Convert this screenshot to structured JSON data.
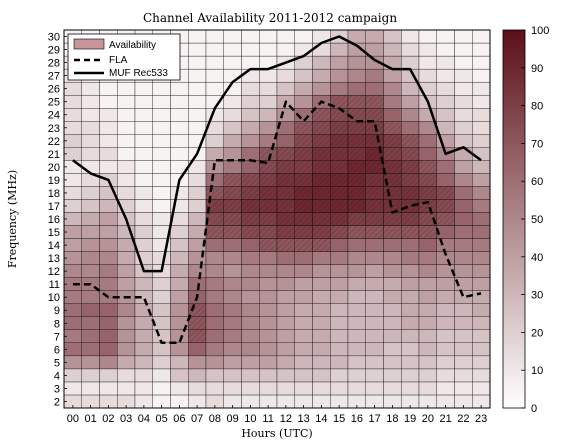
{
  "chart_data": {
    "type": "heatmap",
    "title": "Channel Availability 2011-2012 campaign",
    "xlabel": "Hours (UTC)",
    "ylabel": "Frequency (MHz)",
    "x_tick_labels": [
      "00",
      "01",
      "02",
      "03",
      "04",
      "05",
      "06",
      "07",
      "08",
      "09",
      "10",
      "11",
      "12",
      "13",
      "14",
      "15",
      "16",
      "17",
      "18",
      "19",
      "20",
      "21",
      "22",
      "23"
    ],
    "y_tick_labels": [
      "2",
      "3",
      "4",
      "5",
      "6",
      "7",
      "8",
      "9",
      "10",
      "11",
      "12",
      "13",
      "14",
      "15",
      "16",
      "17",
      "18",
      "19",
      "20",
      "21",
      "22",
      "23",
      "24",
      "25",
      "26",
      "27",
      "28",
      "29",
      "30"
    ],
    "x_range": [
      0,
      23
    ],
    "y_range": [
      2,
      30
    ],
    "colorbar": {
      "min": 0,
      "max": 100,
      "ticks": [
        0,
        10,
        20,
        30,
        40,
        50,
        60,
        70,
        80,
        90,
        100
      ],
      "low_color": "#ffffff",
      "high_color": "#5c0f18"
    },
    "legend": {
      "position": "top-left",
      "entries": [
        "Availability",
        "FLA",
        "MUF Rec533"
      ]
    },
    "hatch_threshold": 70,
    "series": [
      {
        "name": "FLA",
        "style": "dashed",
        "hours": [
          0,
          1,
          2,
          3,
          4,
          5,
          6,
          7,
          8,
          9,
          10,
          11,
          12,
          13,
          14,
          15,
          16,
          17,
          18,
          19,
          20,
          21,
          22,
          23
        ],
        "mhz": [
          11,
          11,
          10,
          10,
          10,
          6.5,
          6.5,
          10,
          20.5,
          20.5,
          20.5,
          20.3,
          25,
          23.5,
          25,
          24.5,
          23.5,
          23.5,
          16.5,
          17,
          17.3,
          13.3,
          10,
          10.3
        ]
      },
      {
        "name": "MUF Rec533",
        "style": "solid",
        "hours": [
          0,
          1,
          2,
          3,
          4,
          5,
          6,
          7,
          8,
          9,
          10,
          11,
          12,
          13,
          14,
          15,
          16,
          17,
          18,
          19,
          20,
          21,
          22,
          23
        ],
        "mhz": [
          20.5,
          19.5,
          19,
          16,
          12,
          12,
          19,
          21,
          24.5,
          26.5,
          27.5,
          27.5,
          28,
          28.5,
          29.5,
          30,
          29.3,
          28.2,
          27.5,
          27.5,
          25,
          21,
          21.5,
          20.5
        ]
      }
    ],
    "availability": [
      [
        15,
        10,
        20,
        45,
        60,
        55,
        60,
        60,
        55,
        55,
        50,
        45,
        40,
        40,
        30,
        20,
        15,
        10,
        10,
        20,
        20,
        15,
        15,
        15,
        15,
        10,
        10,
        5,
        5
      ],
      [
        15,
        10,
        20,
        45,
        60,
        60,
        60,
        65,
        55,
        55,
        50,
        50,
        45,
        40,
        35,
        25,
        20,
        15,
        10,
        15,
        15,
        15,
        10,
        10,
        10,
        5,
        5,
        5,
        5
      ],
      [
        15,
        10,
        20,
        50,
        65,
        65,
        65,
        65,
        55,
        55,
        55,
        50,
        45,
        40,
        40,
        30,
        25,
        20,
        10,
        15,
        10,
        10,
        10,
        5,
        5,
        5,
        5,
        5,
        5
      ],
      [
        15,
        10,
        15,
        35,
        45,
        45,
        45,
        50,
        45,
        40,
        40,
        35,
        35,
        30,
        25,
        20,
        15,
        10,
        10,
        5,
        5,
        5,
        5,
        5,
        5,
        5,
        5,
        5,
        5
      ],
      [
        10,
        10,
        15,
        30,
        35,
        35,
        35,
        35,
        30,
        30,
        25,
        20,
        20,
        20,
        15,
        10,
        10,
        5,
        5,
        5,
        5,
        5,
        5,
        5,
        5,
        5,
        5,
        5,
        5
      ],
      [
        5,
        5,
        10,
        20,
        25,
        25,
        25,
        25,
        20,
        20,
        15,
        15,
        10,
        10,
        10,
        5,
        5,
        5,
        5,
        5,
        5,
        5,
        5,
        5,
        5,
        5,
        5,
        5,
        5
      ],
      [
        5,
        10,
        25,
        30,
        45,
        45,
        45,
        45,
        40,
        35,
        35,
        30,
        25,
        20,
        15,
        10,
        10,
        5,
        5,
        5,
        5,
        5,
        5,
        5,
        5,
        5,
        5,
        5,
        5
      ],
      [
        10,
        15,
        30,
        45,
        65,
        70,
        70,
        70,
        65,
        60,
        50,
        45,
        40,
        35,
        30,
        20,
        20,
        15,
        10,
        5,
        5,
        5,
        5,
        5,
        5,
        5,
        5,
        5,
        5
      ],
      [
        15,
        15,
        25,
        45,
        55,
        60,
        60,
        60,
        55,
        55,
        50,
        50,
        60,
        70,
        75,
        80,
        70,
        60,
        45,
        35,
        20,
        15,
        10,
        5,
        5,
        5,
        5,
        5,
        5
      ],
      [
        10,
        15,
        25,
        40,
        50,
        55,
        55,
        55,
        50,
        50,
        45,
        50,
        60,
        70,
        75,
        80,
        75,
        70,
        55,
        45,
        35,
        25,
        15,
        10,
        5,
        5,
        5,
        5,
        5
      ],
      [
        10,
        15,
        25,
        40,
        50,
        50,
        50,
        50,
        45,
        50,
        50,
        55,
        65,
        75,
        80,
        85,
        80,
        75,
        65,
        60,
        45,
        35,
        25,
        20,
        15,
        10,
        5,
        5,
        5
      ],
      [
        10,
        15,
        25,
        40,
        45,
        45,
        45,
        45,
        45,
        45,
        50,
        55,
        70,
        75,
        80,
        85,
        85,
        80,
        75,
        70,
        55,
        45,
        30,
        20,
        15,
        10,
        5,
        5,
        5
      ],
      [
        10,
        15,
        25,
        35,
        40,
        40,
        40,
        40,
        40,
        45,
        50,
        60,
        70,
        80,
        85,
        85,
        85,
        85,
        80,
        75,
        65,
        60,
        45,
        35,
        25,
        15,
        10,
        5,
        5
      ],
      [
        10,
        15,
        25,
        30,
        35,
        35,
        35,
        35,
        40,
        40,
        50,
        60,
        70,
        80,
        85,
        90,
        90,
        85,
        80,
        80,
        75,
        70,
        60,
        45,
        35,
        25,
        20,
        10,
        5
      ],
      [
        10,
        15,
        25,
        30,
        35,
        35,
        35,
        35,
        35,
        40,
        45,
        55,
        70,
        80,
        85,
        90,
        90,
        90,
        85,
        85,
        80,
        75,
        70,
        60,
        45,
        35,
        30,
        15,
        10
      ],
      [
        10,
        15,
        20,
        30,
        30,
        30,
        30,
        30,
        35,
        40,
        45,
        55,
        65,
        75,
        85,
        90,
        90,
        90,
        85,
        85,
        85,
        80,
        75,
        70,
        55,
        45,
        40,
        30,
        20
      ],
      [
        10,
        15,
        20,
        25,
        30,
        30,
        30,
        30,
        30,
        35,
        45,
        50,
        60,
        70,
        80,
        90,
        90,
        90,
        90,
        85,
        85,
        80,
        75,
        70,
        60,
        50,
        45,
        40,
        35
      ],
      [
        10,
        15,
        20,
        25,
        30,
        30,
        30,
        30,
        30,
        35,
        40,
        50,
        60,
        70,
        80,
        85,
        85,
        85,
        90,
        90,
        85,
        80,
        75,
        70,
        60,
        55,
        45,
        40,
        35
      ],
      [
        10,
        15,
        20,
        25,
        25,
        30,
        30,
        30,
        35,
        35,
        45,
        50,
        60,
        70,
        80,
        85,
        85,
        85,
        85,
        80,
        80,
        70,
        65,
        55,
        50,
        40,
        35,
        30,
        25
      ],
      [
        10,
        15,
        20,
        25,
        25,
        30,
        35,
        35,
        35,
        40,
        45,
        55,
        60,
        70,
        80,
        85,
        85,
        80,
        80,
        75,
        70,
        60,
        50,
        40,
        30,
        25,
        20,
        15,
        10
      ],
      [
        10,
        15,
        20,
        25,
        30,
        30,
        35,
        35,
        40,
        40,
        50,
        55,
        65,
        70,
        75,
        80,
        80,
        75,
        70,
        65,
        60,
        50,
        35,
        25,
        20,
        15,
        10,
        10,
        5
      ],
      [
        10,
        10,
        15,
        20,
        25,
        25,
        30,
        30,
        35,
        40,
        45,
        50,
        55,
        65,
        70,
        75,
        75,
        65,
        60,
        50,
        40,
        30,
        25,
        20,
        15,
        10,
        10,
        5,
        5
      ],
      [
        10,
        10,
        15,
        20,
        25,
        25,
        30,
        30,
        35,
        40,
        45,
        50,
        55,
        60,
        65,
        65,
        60,
        50,
        40,
        35,
        25,
        20,
        15,
        15,
        10,
        10,
        5,
        5,
        5
      ],
      [
        10,
        10,
        15,
        20,
        25,
        25,
        30,
        35,
        35,
        40,
        45,
        50,
        55,
        60,
        60,
        55,
        50,
        40,
        30,
        25,
        20,
        15,
        15,
        10,
        10,
        5,
        5,
        5,
        5
      ]
    ]
  }
}
